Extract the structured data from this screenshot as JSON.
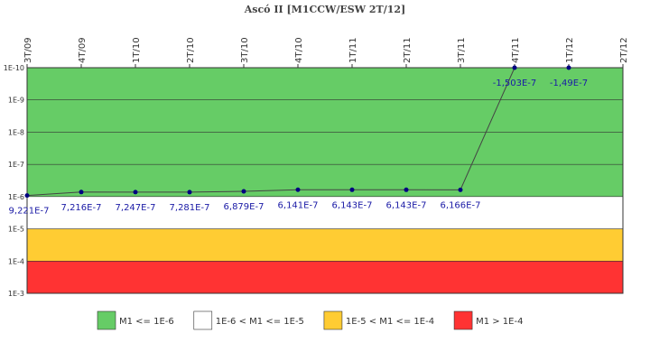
{
  "chart_data": {
    "type": "line",
    "title": "Ascó II [M1CCW/ESW 2T/12]",
    "categories": [
      "3T/09",
      "4T/09",
      "1T/10",
      "2T/10",
      "3T/10",
      "4T/10",
      "1T/11",
      "2T/11",
      "3T/11",
      "4T/11",
      "1T/12",
      "2T/12"
    ],
    "values": [
      9.221e-07,
      7.216e-07,
      7.247e-07,
      7.281e-07,
      6.879e-07,
      6.141e-07,
      6.143e-07,
      6.143e-07,
      6.166e-07,
      -1.503e-07,
      -1.49e-07,
      null
    ],
    "value_labels": [
      "9,221E-7",
      "7,216E-7",
      "7,247E-7",
      "7,281E-7",
      "6,879E-7",
      "6,141E-7",
      "6,143E-7",
      "6,143E-7",
      "6,166E-7",
      "-1,503E-7",
      "-1,49E-7",
      null
    ],
    "color": "#000080",
    "line_color": "#444444",
    "label_color": "#1a1aa6",
    "log_scale": true,
    "y_inverted": true,
    "ylim": [
      1e-10,
      0.001
    ],
    "yticks": [
      {
        "value": 1e-10,
        "label": "1E-10"
      },
      {
        "value": 1e-09,
        "label": "1E-9"
      },
      {
        "value": 1e-08,
        "label": "1E-8"
      },
      {
        "value": 1e-07,
        "label": "1E-7"
      },
      {
        "value": 1e-06,
        "label": "1E-6"
      },
      {
        "value": 1e-05,
        "label": "1E-5"
      },
      {
        "value": 0.0001,
        "label": "1E-4"
      },
      {
        "value": 0.001,
        "label": "1E-3"
      }
    ],
    "bands": [
      {
        "name": "M1 <= 1E-6",
        "color": "#66cc66",
        "from": 1e-10,
        "to": 1e-06
      },
      {
        "name": "1E-6 < M1 <= 1E-5",
        "color": "#ffffff",
        "from": 1e-06,
        "to": 1e-05
      },
      {
        "name": "1E-5 < M1 <= 1E-4",
        "color": "#ffcc33",
        "from": 1e-05,
        "to": 0.0001
      },
      {
        "name": "M1 > 1E-4",
        "color": "#ff3333",
        "from": 0.0001,
        "to": 0.001
      }
    ]
  }
}
